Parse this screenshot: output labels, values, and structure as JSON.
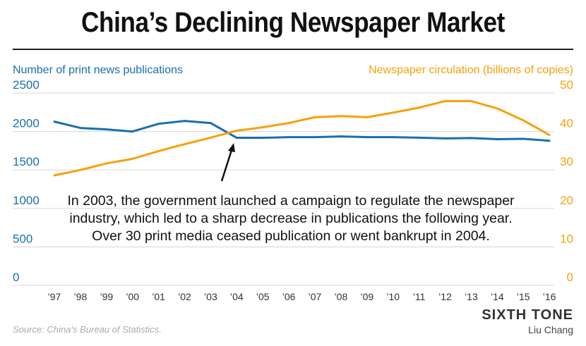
{
  "title": "China’s Declining Newspaper Market",
  "source": "Source: China’s Bureau of Statistics.",
  "brand": "SIXTH TONE",
  "author": "Liu Chang",
  "chart_data": {
    "type": "line",
    "categories": [
      "’97",
      "’98",
      "’99",
      "’00",
      "’01",
      "’02",
      "’03",
      "’04",
      "’05",
      "’06",
      "’07",
      "’08",
      "’09",
      "’10",
      "’11",
      "’12",
      "’13",
      "’14",
      "’15",
      "’16"
    ],
    "left_axis": {
      "label": "Number of print news publications",
      "ticks": [
        "0",
        "500",
        "1000",
        "1500",
        "2000",
        "2500"
      ],
      "range": [
        0,
        2500
      ],
      "color": "#1a6fae"
    },
    "right_axis": {
      "label": "Newspaper circulation (billions of copies)",
      "ticks": [
        "0",
        "10",
        "20",
        "30",
        "40",
        "50"
      ],
      "range": [
        0,
        50
      ],
      "color": "#f5a20a"
    },
    "series": [
      {
        "axis": "left",
        "color": "#1a6fae",
        "values": [
          2128,
          2046,
          2027,
          2000,
          2100,
          2137,
          2110,
          1918,
          1918,
          1927,
          1927,
          1936,
          1927,
          1927,
          1920,
          1910,
          1915,
          1900,
          1905,
          1880
        ]
      },
      {
        "axis": "right",
        "color": "#f5a20a",
        "values": [
          28.6,
          30.0,
          31.7,
          32.9,
          34.9,
          36.7,
          38.4,
          40.2,
          41.1,
          42.2,
          43.7,
          44.0,
          43.7,
          44.9,
          46.2,
          47.9,
          47.9,
          46.0,
          42.9,
          39.1
        ]
      }
    ],
    "annotation": [
      "In 2003, the government launched a campaign to regulate the newspaper",
      "industry, which led to a sharp decrease in publications the following year.",
      "Over 30 print media ceased publication or went bankrupt in 2004."
    ],
    "grid": true
  }
}
